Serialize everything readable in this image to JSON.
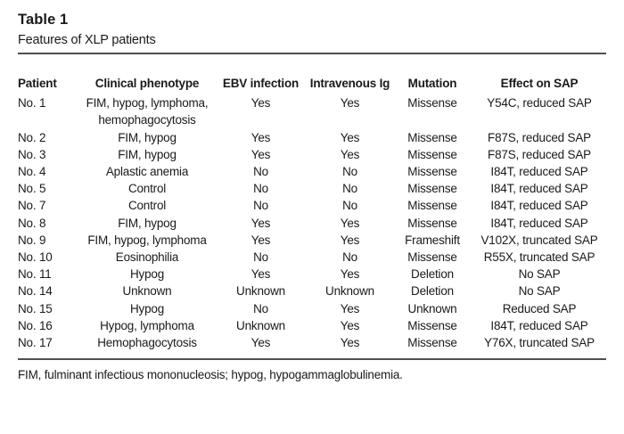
{
  "table": {
    "label": "Table 1",
    "caption": "Features of XLP patients",
    "columns": [
      "Patient",
      "Clinical phenotype",
      "EBV infection",
      "Intravenous Ig",
      "Mutation",
      "Effect on SAP"
    ],
    "rows": [
      [
        "No. 1",
        "FIM, hypog, lymphoma,\nhemophagocytosis",
        "Yes",
        "Yes",
        "Missense",
        "Y54C, reduced SAP"
      ],
      [
        "No. 2",
        "FIM, hypog",
        "Yes",
        "Yes",
        "Missense",
        "F87S, reduced SAP"
      ],
      [
        "No. 3",
        "FIM, hypog",
        "Yes",
        "Yes",
        "Missense",
        "F87S, reduced SAP"
      ],
      [
        "No. 4",
        "Aplastic anemia",
        "No",
        "No",
        "Missense",
        "I84T, reduced SAP"
      ],
      [
        "No. 5",
        "Control",
        "No",
        "No",
        "Missense",
        "I84T, reduced SAP"
      ],
      [
        "No. 7",
        "Control",
        "No",
        "No",
        "Missense",
        "I84T, reduced SAP"
      ],
      [
        "No. 8",
        "FIM, hypog",
        "Yes",
        "Yes",
        "Missense",
        "I84T, reduced SAP"
      ],
      [
        "No. 9",
        "FIM, hypog, lymphoma",
        "Yes",
        "Yes",
        "Frameshift",
        "V102X, truncated SAP"
      ],
      [
        "No. 10",
        "Eosinophilia",
        "No",
        "No",
        "Missense",
        "R55X, truncated SAP"
      ],
      [
        "No. 11",
        "Hypog",
        "Yes",
        "Yes",
        "Deletion",
        "No SAP"
      ],
      [
        "No. 14",
        "Unknown",
        "Unknown",
        "Unknown",
        "Deletion",
        "No SAP"
      ],
      [
        "No. 15",
        "Hypog",
        "No",
        "Yes",
        "Unknown",
        "Reduced SAP"
      ],
      [
        "No. 16",
        "Hypog, lymphoma",
        "Unknown",
        "Yes",
        "Missense",
        "I84T, reduced SAP"
      ],
      [
        "No. 17",
        "Hemophagocytosis",
        "Yes",
        "Yes",
        "Missense",
        "Y76X, truncated SAP"
      ]
    ],
    "footnote": "FIM, fulminant infectious mononucleosis; hypog, hypogammaglobulinemia.",
    "colors": {
      "text": "#1a1a1a",
      "rule": "#4f4f4f",
      "background": "#ffffff"
    }
  }
}
